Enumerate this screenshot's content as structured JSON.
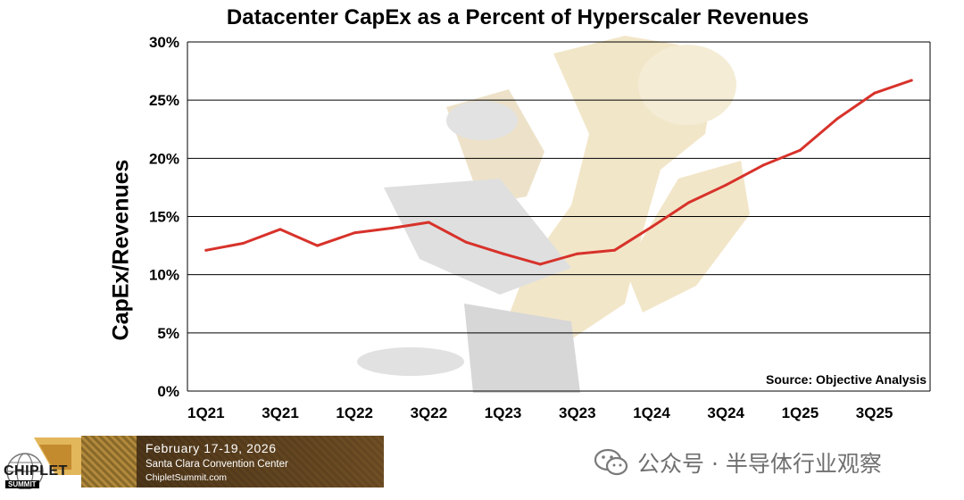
{
  "chart_data": {
    "type": "line",
    "title": "Datacenter CapEx as a Percent of Hyperscaler Revenues",
    "xlabel": "",
    "ylabel": "CapEx/Revenues",
    "x": [
      "1Q21",
      "2Q21",
      "3Q21",
      "4Q21",
      "1Q22",
      "2Q22",
      "3Q22",
      "4Q22",
      "1Q23",
      "2Q23",
      "3Q23",
      "4Q23",
      "1Q24",
      "2Q24",
      "3Q24",
      "4Q24",
      "1Q25",
      "2Q25",
      "3Q25",
      "4Q25"
    ],
    "x_tick_labels": [
      "1Q21",
      "3Q21",
      "1Q22",
      "3Q22",
      "1Q23",
      "3Q23",
      "1Q24",
      "3Q24",
      "1Q25",
      "3Q25"
    ],
    "y_tick_labels": [
      "0%",
      "5%",
      "10%",
      "15%",
      "20%",
      "25%",
      "30%"
    ],
    "ylim": [
      0,
      30
    ],
    "series": [
      {
        "values": [
          12.1,
          12.7,
          13.9,
          12.5,
          13.6,
          14.0,
          14.5,
          12.8,
          11.8,
          10.9,
          11.8,
          12.1,
          14.1,
          16.2,
          17.7,
          19.4,
          20.7,
          23.4,
          25.6,
          26.7
        ],
        "color": "#d7322a"
      }
    ],
    "grid": true,
    "source": "Source: Objective Analysis"
  },
  "footer": {
    "logo_text": "CHIPLET",
    "logo_sub": "SUMMIT",
    "banner_date": "February 17-19, 2026",
    "banner_venue": "Santa Clara Convention Center",
    "banner_url": "ChipletSummit.com",
    "wechat_text": "公众号 · 半导体行业观察"
  }
}
